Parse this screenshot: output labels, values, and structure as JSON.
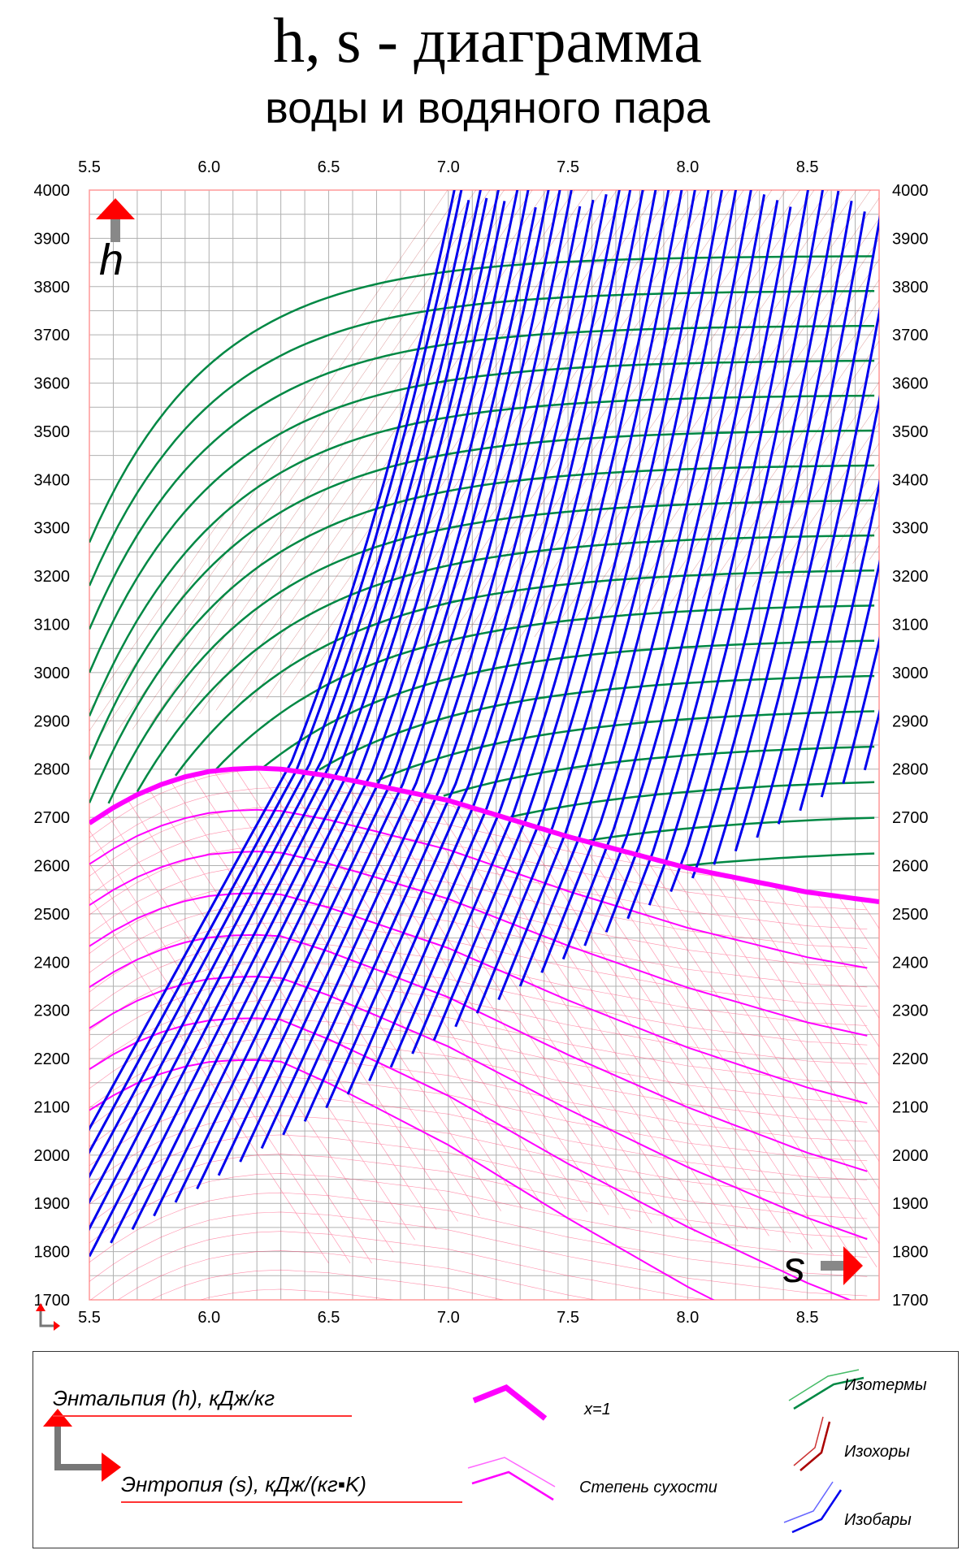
{
  "title": "h, s - диаграмма",
  "subtitle": "воды и водяного пара",
  "chart_data": {
    "type": "line",
    "title": "h, s - диаграмма",
    "subtitle": "воды и водяного пара",
    "xlabel": "s",
    "ylabel": "h",
    "xlim": [
      5.5,
      8.8
    ],
    "ylim": [
      1700,
      4000
    ],
    "xticks": [
      "5.5",
      "6.0",
      "6.5",
      "7.0",
      "7.5",
      "8.0",
      "8.5"
    ],
    "yticks": [
      "4000",
      "3900",
      "3800",
      "3700",
      "3600",
      "3500",
      "3400",
      "3300",
      "3200",
      "3100",
      "3000",
      "2900",
      "2800",
      "2700",
      "2600",
      "2500",
      "2400",
      "2300",
      "2200",
      "2100",
      "2000",
      "1900",
      "1800",
      "1700"
    ],
    "grid": true,
    "legend": {
      "enthalpy": "Энтальпия (h), кДж/кг",
      "entropy": "Энтропия (s), кДж/(кг▪K)",
      "saturation": "x=1",
      "dryness": "Степень сухости",
      "isotherms": "Изотермы",
      "isochores": "Изохоры",
      "isobars": "Изобары"
    },
    "colors": {
      "saturation": "#ff00ff",
      "dryness": "#ff00ff",
      "isobars": "#0000ee",
      "isotherms": "#008844",
      "isochores": "#aa0000",
      "grid": "#b0b0b0",
      "frame": "#ff9999",
      "arrow": "#ff0000"
    },
    "series": [
      {
        "name": "x=1",
        "x": [
          5.5,
          5.6,
          5.7,
          5.8,
          5.9,
          6.0,
          6.1,
          6.2,
          6.3,
          6.5,
          6.7,
          7.0,
          7.5,
          8.0,
          8.5,
          8.8
        ],
        "y": [
          2688,
          2720,
          2747,
          2768,
          2784,
          2795,
          2800,
          2802,
          2800,
          2786,
          2766,
          2735,
          2660,
          2595,
          2545,
          2525
        ]
      }
    ]
  }
}
